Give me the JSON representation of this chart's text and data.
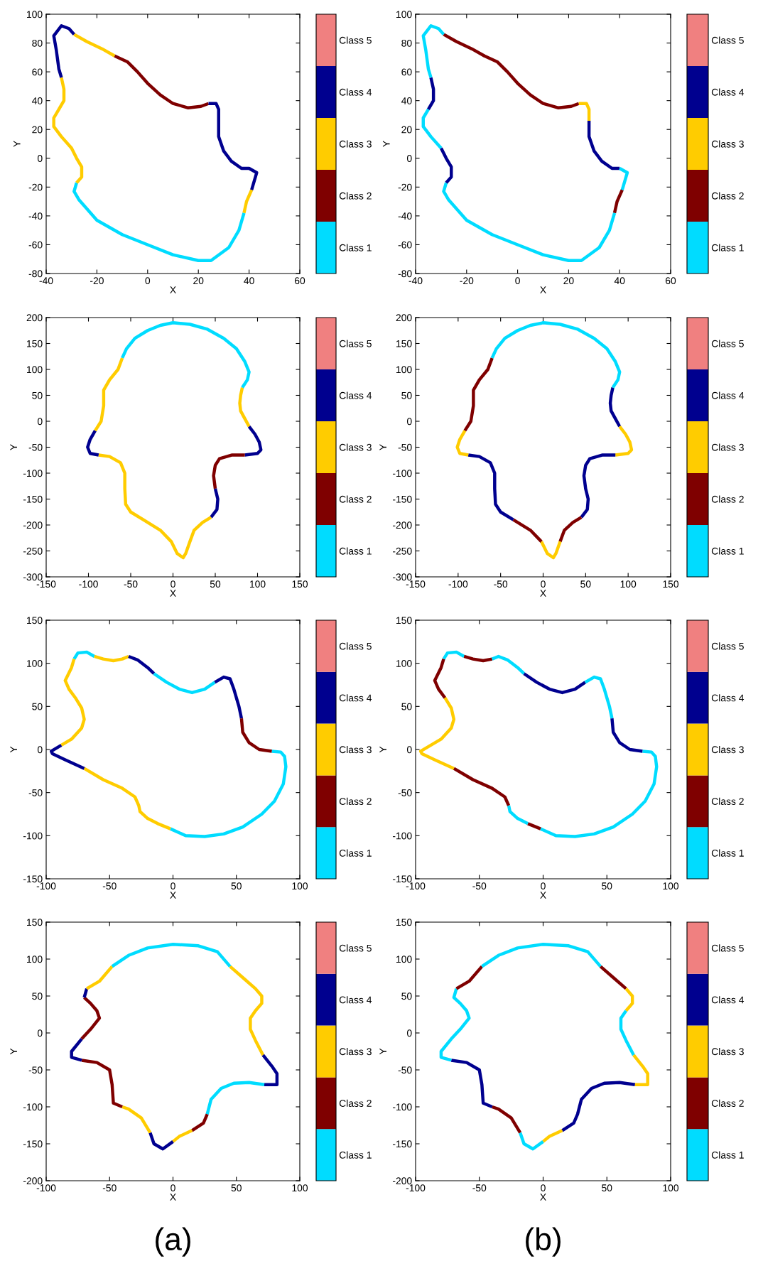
{
  "chart_data": [
    {
      "type": "line",
      "xlabel": "X",
      "ylabel": "Y",
      "xlim": [
        -40,
        60
      ],
      "ylim": [
        -80,
        100
      ],
      "xticks": [
        -40,
        -20,
        0,
        20,
        40,
        60
      ],
      "yticks": [
        -80,
        -60,
        -40,
        -20,
        0,
        20,
        40,
        60,
        80,
        100
      ],
      "colors": [
        "#00dcff",
        "#7f0000",
        "#ffcc00",
        "#00008f",
        "#f08080"
      ],
      "clim": [
        0.5,
        5.5
      ],
      "cticks": [
        {
          "value": 1,
          "label": "Class 1"
        },
        {
          "value": 2,
          "label": "Class 2"
        },
        {
          "value": 3,
          "label": "Class 3"
        },
        {
          "value": 4,
          "label": "Class 4"
        },
        {
          "value": 5,
          "label": "Class 5"
        }
      ],
      "series": [
        {
          "color": "#ffcc00",
          "x": [
            -29,
            -24,
            -18,
            -13
          ],
          "values": [
            86,
            81,
            76,
            71
          ]
        },
        {
          "color": "#7f0000",
          "x": [
            -13,
            -8,
            -4,
            0,
            5,
            10,
            16,
            21,
            24
          ],
          "values": [
            71,
            67,
            60,
            52,
            44,
            38,
            35,
            36,
            38
          ]
        },
        {
          "color": "#00008f",
          "x": [
            24,
            27,
            28,
            28,
            28,
            30,
            33,
            37,
            40,
            43,
            41
          ],
          "values": [
            38,
            38,
            34,
            26,
            15,
            5,
            -2,
            -7,
            -7,
            -10,
            -22
          ]
        },
        {
          "color": "#ffcc00",
          "x": [
            41,
            39,
            38
          ],
          "values": [
            -22,
            -30,
            -38
          ]
        },
        {
          "color": "#00dcff",
          "x": [
            38,
            36,
            32,
            25,
            20,
            10,
            0,
            -10,
            -20,
            -27,
            -29,
            -28
          ],
          "values": [
            -38,
            -50,
            -62,
            -71,
            -71,
            -67,
            -60,
            -53,
            -43,
            -29,
            -23,
            -17
          ]
        },
        {
          "color": "#ffcc00",
          "x": [
            -28,
            -26,
            -26,
            -28,
            -30,
            -34,
            -37,
            -37,
            -35,
            -33,
            -33,
            -34
          ],
          "values": [
            -17,
            -13,
            -6,
            0,
            7,
            15,
            22,
            28,
            34,
            40,
            48,
            56
          ]
        },
        {
          "color": "#00008f",
          "x": [
            -34,
            -35,
            -36,
            -37,
            -34,
            -31,
            -29
          ],
          "values": [
            56,
            62,
            75,
            85,
            92,
            90,
            86
          ]
        }
      ]
    },
    {
      "type": "line",
      "xlabel": "X",
      "ylabel": "Y",
      "xlim": [
        -40,
        60
      ],
      "ylim": [
        -80,
        100
      ],
      "xticks": [
        -40,
        -20,
        0,
        20,
        40,
        60
      ],
      "yticks": [
        -80,
        -60,
        -40,
        -20,
        0,
        20,
        40,
        60,
        80,
        100
      ],
      "colors": [
        "#00dcff",
        "#7f0000",
        "#ffcc00",
        "#00008f",
        "#f08080"
      ],
      "clim": [
        0.5,
        5.5
      ],
      "cticks": [
        {
          "value": 1,
          "label": "Class 1"
        },
        {
          "value": 2,
          "label": "Class 2"
        },
        {
          "value": 3,
          "label": "Class 3"
        },
        {
          "value": 4,
          "label": "Class 4"
        },
        {
          "value": 5,
          "label": "Class 5"
        }
      ],
      "series": [
        {
          "color": "#7f0000",
          "x": [
            -29,
            -24,
            -18,
            -13,
            -8,
            -4,
            0,
            5,
            10,
            16,
            21,
            24
          ],
          "values": [
            86,
            81,
            76,
            71,
            67,
            60,
            52,
            44,
            38,
            35,
            36,
            38
          ]
        },
        {
          "color": "#ffcc00",
          "x": [
            24,
            27,
            28,
            28
          ],
          "values": [
            38,
            38,
            34,
            26
          ]
        },
        {
          "color": "#00008f",
          "x": [
            28,
            28,
            30,
            33,
            37,
            40
          ],
          "values": [
            26,
            15,
            5,
            -2,
            -7,
            -7
          ]
        },
        {
          "color": "#00dcff",
          "x": [
            40,
            43,
            41
          ],
          "values": [
            -7,
            -10,
            -22
          ]
        },
        {
          "color": "#7f0000",
          "x": [
            41,
            39,
            38
          ],
          "values": [
            -22,
            -30,
            -38
          ]
        },
        {
          "color": "#00dcff",
          "x": [
            38,
            36,
            32,
            25,
            20,
            10,
            0,
            -10,
            -20,
            -27,
            -29,
            -28
          ],
          "values": [
            -38,
            -50,
            -62,
            -71,
            -71,
            -67,
            -60,
            -53,
            -43,
            -29,
            -23,
            -17
          ]
        },
        {
          "color": "#00008f",
          "x": [
            -28,
            -26,
            -26,
            -28,
            -30
          ],
          "values": [
            -17,
            -13,
            -6,
            0,
            7
          ]
        },
        {
          "color": "#00dcff",
          "x": [
            -30,
            -34,
            -37,
            -37,
            -35
          ],
          "values": [
            7,
            15,
            22,
            28,
            34
          ]
        },
        {
          "color": "#00008f",
          "x": [
            -35,
            -33,
            -33,
            -34
          ],
          "values": [
            34,
            40,
            48,
            56
          ]
        },
        {
          "color": "#00dcff",
          "x": [
            -34,
            -35,
            -36,
            -37,
            -34,
            -31,
            -29
          ],
          "values": [
            56,
            62,
            75,
            85,
            92,
            90,
            86
          ]
        }
      ]
    },
    {
      "type": "line",
      "xlabel": "X",
      "ylabel": "Y",
      "xlim": [
        -150,
        150
      ],
      "ylim": [
        -300,
        200
      ],
      "xticks": [
        -150,
        -100,
        -50,
        0,
        50,
        100,
        150
      ],
      "yticks": [
        -300,
        -250,
        -200,
        -150,
        -100,
        -50,
        0,
        50,
        100,
        150,
        200
      ],
      "colors": [
        "#00dcff",
        "#7f0000",
        "#ffcc00",
        "#00008f",
        "#f08080"
      ],
      "clim": [
        0.5,
        5.5
      ],
      "cticks": [
        {
          "value": 1,
          "label": "Class 1"
        },
        {
          "value": 2,
          "label": "Class 2"
        },
        {
          "value": 3,
          "label": "Class 3"
        },
        {
          "value": 4,
          "label": "Class 4"
        },
        {
          "value": 5,
          "label": "Class 5"
        }
      ],
      "series": [
        {
          "color": "#ffcc00",
          "x": [
            82,
            80,
            79,
            80,
            85,
            90
          ],
          "values": [
            65,
            50,
            35,
            20,
            5,
            -10
          ]
        },
        {
          "color": "#00008f",
          "x": [
            90,
            97,
            102,
            104,
            100,
            85
          ],
          "values": [
            -10,
            -25,
            -40,
            -55,
            -62,
            -65
          ]
        },
        {
          "color": "#7f0000",
          "x": [
            85,
            70,
            55,
            50,
            48,
            50
          ],
          "values": [
            -65,
            -65,
            -72,
            -85,
            -105,
            -130
          ]
        },
        {
          "color": "#00008f",
          "x": [
            50,
            53,
            52,
            45
          ],
          "values": [
            -130,
            -150,
            -170,
            -185
          ]
        },
        {
          "color": "#ffcc00",
          "x": [
            45,
            35,
            25,
            20,
            15,
            12,
            5,
            -2,
            -15,
            -35,
            -50,
            -56,
            -57,
            -57,
            -62,
            -75,
            -88
          ],
          "values": [
            -185,
            -195,
            -210,
            -232,
            -255,
            -263,
            -255,
            -232,
            -210,
            -190,
            -175,
            -160,
            -130,
            -100,
            -80,
            -68,
            -65
          ]
        },
        {
          "color": "#00008f",
          "x": [
            -88,
            -98,
            -101,
            -98,
            -92
          ],
          "values": [
            -65,
            -62,
            -50,
            -35,
            -18
          ]
        },
        {
          "color": "#ffcc00",
          "x": [
            -92,
            -85,
            -82,
            -82,
            -75,
            -65,
            -60
          ],
          "values": [
            -18,
            0,
            30,
            60,
            80,
            100,
            122
          ]
        },
        {
          "color": "#00dcff",
          "x": [
            -60,
            -55,
            -45,
            -30,
            -15,
            0,
            20,
            40,
            60,
            75,
            85,
            90,
            88,
            82
          ],
          "values": [
            122,
            140,
            160,
            175,
            185,
            190,
            187,
            178,
            160,
            140,
            115,
            95,
            80,
            65
          ]
        }
      ]
    },
    {
      "type": "line",
      "xlabel": "X",
      "ylabel": "Y",
      "xlim": [
        -150,
        150
      ],
      "ylim": [
        -300,
        200
      ],
      "xticks": [
        -150,
        -100,
        -50,
        0,
        50,
        100,
        150
      ],
      "yticks": [
        -300,
        -250,
        -200,
        -150,
        -100,
        -50,
        0,
        50,
        100,
        150,
        200
      ],
      "colors": [
        "#00dcff",
        "#7f0000",
        "#ffcc00",
        "#00008f",
        "#f08080"
      ],
      "clim": [
        0.5,
        5.5
      ],
      "cticks": [
        {
          "value": 1,
          "label": "Class 1"
        },
        {
          "value": 2,
          "label": "Class 2"
        },
        {
          "value": 3,
          "label": "Class 3"
        },
        {
          "value": 4,
          "label": "Class 4"
        },
        {
          "value": 5,
          "label": "Class 5"
        }
      ],
      "series": [
        {
          "color": "#00008f",
          "x": [
            82,
            80,
            79,
            80,
            85,
            90
          ],
          "values": [
            65,
            50,
            35,
            20,
            5,
            -10
          ]
        },
        {
          "color": "#ffcc00",
          "x": [
            90,
            97,
            102,
            104,
            100,
            85
          ],
          "values": [
            -10,
            -25,
            -40,
            -55,
            -62,
            -65
          ]
        },
        {
          "color": "#00008f",
          "x": [
            85,
            70,
            55,
            50,
            48,
            50,
            53,
            52,
            45
          ],
          "values": [
            -65,
            -65,
            -72,
            -85,
            -105,
            -130,
            -150,
            -170,
            -185
          ]
        },
        {
          "color": "#7f0000",
          "x": [
            45,
            35,
            25,
            20
          ],
          "values": [
            -185,
            -195,
            -210,
            -232
          ]
        },
        {
          "color": "#ffcc00",
          "x": [
            20,
            15,
            12,
            5,
            -2
          ],
          "values": [
            -232,
            -255,
            -263,
            -255,
            -232
          ]
        },
        {
          "color": "#7f0000",
          "x": [
            -2,
            -15,
            -35
          ],
          "values": [
            -232,
            -210,
            -190
          ]
        },
        {
          "color": "#00008f",
          "x": [
            -35,
            -50,
            -56,
            -57,
            -57,
            -62,
            -75,
            -88
          ],
          "values": [
            -190,
            -175,
            -160,
            -130,
            -100,
            -80,
            -68,
            -65
          ]
        },
        {
          "color": "#ffcc00",
          "x": [
            -88,
            -98,
            -101,
            -98,
            -92
          ],
          "values": [
            -65,
            -62,
            -50,
            -35,
            -18
          ]
        },
        {
          "color": "#7f0000",
          "x": [
            -92,
            -85,
            -82,
            -82,
            -75,
            -65,
            -60
          ],
          "values": [
            -18,
            0,
            30,
            60,
            80,
            100,
            122
          ]
        },
        {
          "color": "#00dcff",
          "x": [
            -60,
            -55,
            -45,
            -30,
            -15,
            0,
            20,
            40,
            60,
            75,
            85,
            90,
            88,
            82
          ],
          "values": [
            122,
            140,
            160,
            175,
            185,
            190,
            187,
            178,
            160,
            140,
            115,
            95,
            80,
            65
          ]
        }
      ]
    },
    {
      "type": "line",
      "xlabel": "X",
      "ylabel": "Y",
      "xlim": [
        -100,
        100
      ],
      "ylim": [
        -150,
        150
      ],
      "xticks": [
        -100,
        -50,
        0,
        50,
        100
      ],
      "yticks": [
        -150,
        -100,
        -50,
        0,
        50,
        100,
        150
      ],
      "colors": [
        "#00dcff",
        "#7f0000",
        "#ffcc00",
        "#00008f",
        "#f08080"
      ],
      "clim": [
        0.5,
        5.5
      ],
      "cticks": [
        {
          "value": 1,
          "label": "Class 1"
        },
        {
          "value": 2,
          "label": "Class 2"
        },
        {
          "value": 3,
          "label": "Class 3"
        },
        {
          "value": 4,
          "label": "Class 4"
        },
        {
          "value": 5,
          "label": "Class 5"
        }
      ],
      "series": [
        {
          "color": "#00dcff",
          "x": [
            -78,
            -75,
            -68,
            -62
          ],
          "values": [
            105,
            112,
            113,
            108
          ]
        },
        {
          "color": "#ffcc00",
          "x": [
            -62,
            -55,
            -47,
            -40,
            -35
          ],
          "values": [
            108,
            105,
            103,
            105,
            108
          ]
        },
        {
          "color": "#00008f",
          "x": [
            -35,
            -28,
            -20,
            -15
          ],
          "values": [
            108,
            104,
            95,
            88
          ]
        },
        {
          "color": "#00dcff",
          "x": [
            -15,
            -5,
            5,
            15,
            25,
            33
          ],
          "values": [
            88,
            78,
            70,
            66,
            70,
            78
          ]
        },
        {
          "color": "#00008f",
          "x": [
            33,
            40,
            45,
            48,
            52,
            54
          ],
          "values": [
            78,
            84,
            82,
            70,
            50,
            36
          ]
        },
        {
          "color": "#7f0000",
          "x": [
            54,
            55,
            60,
            68,
            78
          ],
          "values": [
            36,
            20,
            8,
            0,
            -2
          ]
        },
        {
          "color": "#00dcff",
          "x": [
            78,
            85,
            88,
            89,
            87,
            80,
            70,
            55,
            40,
            25,
            10,
            -2
          ],
          "values": [
            -2,
            -3,
            -8,
            -20,
            -40,
            -60,
            -75,
            -90,
            -98,
            -101,
            -100,
            -92
          ]
        },
        {
          "color": "#ffcc00",
          "x": [
            -2,
            -12,
            -20,
            -26,
            -27,
            -30,
            -40,
            -55,
            -70
          ],
          "values": [
            -92,
            -86,
            -80,
            -72,
            -65,
            -55,
            -45,
            -35,
            -22
          ]
        },
        {
          "color": "#00008f",
          "x": [
            -70,
            -85,
            -95,
            -96,
            -88
          ],
          "values": [
            -22,
            -12,
            -5,
            -2,
            5
          ]
        },
        {
          "color": "#ffcc00",
          "x": [
            -88,
            -80,
            -72,
            -70,
            -72,
            -77,
            -82,
            -85,
            -80,
            -78
          ],
          "values": [
            5,
            12,
            25,
            35,
            48,
            60,
            70,
            80,
            95,
            105
          ]
        }
      ]
    },
    {
      "type": "line",
      "xlabel": "X",
      "ylabel": "Y",
      "xlim": [
        -100,
        100
      ],
      "ylim": [
        -150,
        150
      ],
      "xticks": [
        -100,
        -50,
        0,
        50,
        100
      ],
      "yticks": [
        -150,
        -100,
        -50,
        0,
        50,
        100,
        150
      ],
      "colors": [
        "#00dcff",
        "#7f0000",
        "#ffcc00",
        "#00008f",
        "#f08080"
      ],
      "clim": [
        0.5,
        5.5
      ],
      "cticks": [
        {
          "value": 1,
          "label": "Class 1"
        },
        {
          "value": 2,
          "label": "Class 2"
        },
        {
          "value": 3,
          "label": "Class 3"
        },
        {
          "value": 4,
          "label": "Class 4"
        },
        {
          "value": 5,
          "label": "Class 5"
        }
      ],
      "series": [
        {
          "color": "#00dcff",
          "x": [
            -78,
            -75,
            -68,
            -62
          ],
          "values": [
            105,
            112,
            113,
            108
          ]
        },
        {
          "color": "#7f0000",
          "x": [
            -62,
            -55,
            -47,
            -40
          ],
          "values": [
            108,
            105,
            103,
            105
          ]
        },
        {
          "color": "#00dcff",
          "x": [
            -40,
            -35,
            -28,
            -20,
            -15
          ],
          "values": [
            105,
            108,
            104,
            95,
            88
          ]
        },
        {
          "color": "#00008f",
          "x": [
            -15,
            -5,
            5,
            15,
            25,
            33
          ],
          "values": [
            88,
            78,
            70,
            66,
            70,
            78
          ]
        },
        {
          "color": "#00dcff",
          "x": [
            33,
            40,
            45,
            48,
            52,
            54
          ],
          "values": [
            78,
            84,
            82,
            70,
            50,
            36
          ]
        },
        {
          "color": "#00008f",
          "x": [
            54,
            55,
            60,
            68,
            78
          ],
          "values": [
            36,
            20,
            8,
            0,
            -2
          ]
        },
        {
          "color": "#00dcff",
          "x": [
            78,
            85,
            88,
            89,
            87,
            80,
            70,
            55,
            40,
            25,
            10,
            -2
          ],
          "values": [
            -2,
            -3,
            -8,
            -20,
            -40,
            -60,
            -75,
            -90,
            -98,
            -101,
            -100,
            -92
          ]
        },
        {
          "color": "#7f0000",
          "x": [
            -2,
            -12
          ],
          "values": [
            -92,
            -86
          ]
        },
        {
          "color": "#00dcff",
          "x": [
            -12,
            -20,
            -26,
            -27
          ],
          "values": [
            -86,
            -80,
            -72,
            -65
          ]
        },
        {
          "color": "#7f0000",
          "x": [
            -27,
            -30,
            -40,
            -55,
            -70
          ],
          "values": [
            -65,
            -55,
            -45,
            -35,
            -22
          ]
        },
        {
          "color": "#ffcc00",
          "x": [
            -70,
            -85,
            -95,
            -96,
            -88,
            -80,
            -72,
            -70,
            -72,
            -77
          ],
          "values": [
            -22,
            -12,
            -5,
            -2,
            5,
            12,
            25,
            35,
            48,
            60
          ]
        },
        {
          "color": "#7f0000",
          "x": [
            -77,
            -82,
            -85,
            -80,
            -78
          ],
          "values": [
            60,
            70,
            80,
            95,
            105
          ]
        }
      ]
    },
    {
      "type": "line",
      "xlabel": "X",
      "ylabel": "Y",
      "xlim": [
        -100,
        100
      ],
      "ylim": [
        -200,
        150
      ],
      "xticks": [
        -100,
        -50,
        0,
        50,
        100
      ],
      "yticks": [
        -200,
        -150,
        -100,
        -50,
        0,
        50,
        100,
        150
      ],
      "colors": [
        "#00dcff",
        "#7f0000",
        "#ffcc00",
        "#00008f",
        "#f08080"
      ],
      "clim": [
        0.5,
        5.5
      ],
      "cticks": [
        {
          "value": 1,
          "label": "Class 1"
        },
        {
          "value": 2,
          "label": "Class 2"
        },
        {
          "value": 3,
          "label": "Class 3"
        },
        {
          "value": 4,
          "label": "Class 4"
        },
        {
          "value": 5,
          "label": "Class 5"
        }
      ],
      "annotations": [
        "(a)"
      ],
      "series": [
        {
          "color": "#ffcc00",
          "x": [
            45,
            55,
            65,
            70,
            70,
            65,
            61,
            61,
            65,
            71
          ],
          "values": [
            90,
            75,
            60,
            50,
            40,
            30,
            20,
            5,
            -10,
            -30
          ]
        },
        {
          "color": "#00008f",
          "x": [
            71,
            78,
            82,
            82,
            72
          ],
          "values": [
            -30,
            -45,
            -55,
            -70,
            -70
          ]
        },
        {
          "color": "#00dcff",
          "x": [
            72,
            60,
            48,
            38,
            30,
            27
          ],
          "values": [
            -70,
            -67,
            -68,
            -75,
            -90,
            -110
          ]
        },
        {
          "color": "#7f0000",
          "x": [
            27,
            24,
            15
          ],
          "values": [
            -110,
            -122,
            -132
          ]
        },
        {
          "color": "#ffcc00",
          "x": [
            15,
            5,
            0
          ],
          "values": [
            -132,
            -140,
            -147
          ]
        },
        {
          "color": "#00008f",
          "x": [
            0,
            -8,
            -15,
            -18
          ],
          "values": [
            -147,
            -157,
            -150,
            -135
          ]
        },
        {
          "color": "#ffcc00",
          "x": [
            -18,
            -25,
            -35,
            -40
          ],
          "values": [
            -135,
            -115,
            -103,
            -100
          ]
        },
        {
          "color": "#7f0000",
          "x": [
            -40,
            -47,
            -48,
            -50,
            -60,
            -72
          ],
          "values": [
            -100,
            -95,
            -70,
            -50,
            -40,
            -37
          ]
        },
        {
          "color": "#00008f",
          "x": [
            -72,
            -80,
            -80,
            -72
          ],
          "values": [
            -37,
            -33,
            -25,
            -8
          ]
        },
        {
          "color": "#7f0000",
          "x": [
            -72,
            -65,
            -58,
            -60,
            -65,
            -70
          ],
          "values": [
            -8,
            5,
            20,
            30,
            40,
            48
          ]
        },
        {
          "color": "#00008f",
          "x": [
            -70,
            -68
          ],
          "values": [
            48,
            60
          ]
        },
        {
          "color": "#ffcc00",
          "x": [
            -68,
            -58,
            -48
          ],
          "values": [
            60,
            70,
            90
          ]
        },
        {
          "color": "#00dcff",
          "x": [
            -48,
            -35,
            -20,
            0,
            20,
            35,
            45
          ],
          "values": [
            90,
            105,
            115,
            120,
            118,
            110,
            90
          ]
        }
      ]
    },
    {
      "type": "line",
      "xlabel": "X",
      "ylabel": "Y",
      "xlim": [
        -100,
        100
      ],
      "ylim": [
        -200,
        150
      ],
      "xticks": [
        -100,
        -50,
        0,
        50,
        100
      ],
      "yticks": [
        -200,
        -150,
        -100,
        -50,
        0,
        50,
        100,
        150
      ],
      "colors": [
        "#00dcff",
        "#7f0000",
        "#ffcc00",
        "#00008f",
        "#f08080"
      ],
      "clim": [
        0.5,
        5.5
      ],
      "cticks": [
        {
          "value": 1,
          "label": "Class 1"
        },
        {
          "value": 2,
          "label": "Class 2"
        },
        {
          "value": 3,
          "label": "Class 3"
        },
        {
          "value": 4,
          "label": "Class 4"
        },
        {
          "value": 5,
          "label": "Class 5"
        }
      ],
      "annotations": [
        "(b)"
      ],
      "series": [
        {
          "color": "#7f0000",
          "x": [
            45,
            55,
            65
          ],
          "values": [
            90,
            75,
            60
          ]
        },
        {
          "color": "#ffcc00",
          "x": [
            65,
            70,
            70,
            65
          ],
          "values": [
            60,
            50,
            40,
            30
          ]
        },
        {
          "color": "#00dcff",
          "x": [
            65,
            61,
            61,
            65,
            71
          ],
          "values": [
            30,
            20,
            5,
            -10,
            -30
          ]
        },
        {
          "color": "#ffcc00",
          "x": [
            71,
            78,
            82,
            82,
            72
          ],
          "values": [
            -30,
            -45,
            -55,
            -70,
            -70
          ]
        },
        {
          "color": "#00008f",
          "x": [
            72,
            60,
            48,
            38,
            30,
            27,
            24,
            15
          ],
          "values": [
            -70,
            -67,
            -68,
            -75,
            -90,
            -110,
            -122,
            -132
          ]
        },
        {
          "color": "#ffcc00",
          "x": [
            15,
            5,
            0
          ],
          "values": [
            -132,
            -140,
            -147
          ]
        },
        {
          "color": "#00dcff",
          "x": [
            0,
            -8,
            -15,
            -18
          ],
          "values": [
            -147,
            -157,
            -150,
            -135
          ]
        },
        {
          "color": "#7f0000",
          "x": [
            -18,
            -25,
            -35,
            -40
          ],
          "values": [
            -135,
            -115,
            -103,
            -100
          ]
        },
        {
          "color": "#00008f",
          "x": [
            -40,
            -47,
            -48,
            -50,
            -60,
            -72
          ],
          "values": [
            -100,
            -95,
            -70,
            -50,
            -40,
            -37
          ]
        },
        {
          "color": "#00dcff",
          "x": [
            -72,
            -80,
            -80,
            -72,
            -65,
            -58,
            -60,
            -65,
            -70,
            -68
          ],
          "values": [
            -37,
            -33,
            -25,
            -8,
            5,
            20,
            30,
            40,
            48,
            60
          ]
        },
        {
          "color": "#7f0000",
          "x": [
            -68,
            -58,
            -48
          ],
          "values": [
            60,
            70,
            90
          ]
        },
        {
          "color": "#00dcff",
          "x": [
            -48,
            -35,
            -20,
            0,
            20,
            35,
            45
          ],
          "values": [
            90,
            105,
            115,
            120,
            118,
            110,
            90
          ]
        }
      ]
    }
  ]
}
